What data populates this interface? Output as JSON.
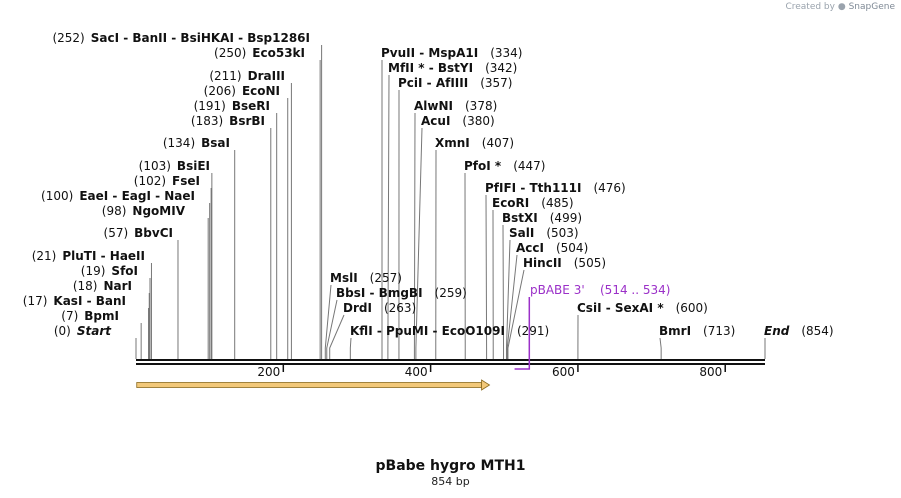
{
  "watermark": {
    "prefix": "Created by",
    "brand": "SnapGene"
  },
  "title": "pBabe hygro MTH1",
  "subtitle": "854 bp",
  "sequence_length": 854,
  "ticks": [
    {
      "pos": 200,
      "label": "200"
    },
    {
      "pos": 400,
      "label": "400"
    },
    {
      "pos": 600,
      "label": "600"
    },
    {
      "pos": 800,
      "label": "800"
    }
  ],
  "feature": {
    "name": "pBABE 3'",
    "range": "(514 .. 534)",
    "start": 514,
    "end": 534,
    "color": "#9b30c8"
  },
  "arrow": {
    "start": 1,
    "end": 480,
    "color": "#f2c879"
  },
  "enzymes": [
    {
      "names": "SacI - BanII - BsiHKAI - Bsp1286I",
      "pos": 252,
      "label": "(252)",
      "side": "left"
    },
    {
      "names": "Eco53kI",
      "pos": 250,
      "label": "(250)",
      "side": "left"
    },
    {
      "names": "DraIII",
      "pos": 211,
      "label": "(211)",
      "side": "left"
    },
    {
      "names": "EcoNI",
      "pos": 206,
      "label": "(206)",
      "side": "left"
    },
    {
      "names": "BseRI",
      "pos": 191,
      "label": "(191)",
      "side": "left"
    },
    {
      "names": "BsrBI",
      "pos": 183,
      "label": "(183)",
      "side": "left"
    },
    {
      "names": "BsaI",
      "pos": 134,
      "label": "(134)",
      "side": "left"
    },
    {
      "names": "BsiEI",
      "pos": 103,
      "label": "(103)",
      "side": "left"
    },
    {
      "names": "FseI",
      "pos": 102,
      "label": "(102)",
      "side": "left"
    },
    {
      "names": "EaeI - EagI - NaeI",
      "pos": 100,
      "label": "(100)",
      "side": "left"
    },
    {
      "names": "NgoMIV",
      "pos": 98,
      "label": "(98)",
      "side": "left"
    },
    {
      "names": "BbvCI",
      "pos": 57,
      "label": "(57)",
      "side": "left"
    },
    {
      "names": "PluTI - HaeII",
      "pos": 21,
      "label": "(21)",
      "side": "left"
    },
    {
      "names": "SfoI",
      "pos": 19,
      "label": "(19)",
      "side": "left"
    },
    {
      "names": "NarI",
      "pos": 18,
      "label": "(18)",
      "side": "left"
    },
    {
      "names": "KasI - BanI",
      "pos": 17,
      "label": "(17)",
      "side": "left"
    },
    {
      "names": "BpmI",
      "pos": 7,
      "label": "(7)",
      "side": "left"
    },
    {
      "names": "Start",
      "pos": 0,
      "label": "(0)",
      "side": "left",
      "italic": true
    },
    {
      "names": "MslI",
      "pos": 257,
      "label": "(257)",
      "side": "right"
    },
    {
      "names": "BbsI - BmgBI",
      "pos": 259,
      "label": "(259)",
      "side": "right"
    },
    {
      "names": "DrdI",
      "pos": 263,
      "label": "(263)",
      "side": "right"
    },
    {
      "names": "KflI - PpuMI - EcoO109I",
      "pos": 291,
      "label": "(291)",
      "side": "right"
    },
    {
      "names": "PvuII - MspA1I",
      "pos": 334,
      "label": "(334)",
      "side": "right"
    },
    {
      "names": "MfII * - BstYI",
      "pos": 342,
      "label": "(342)",
      "side": "right"
    },
    {
      "names": "PciI - AfIIII",
      "pos": 357,
      "label": "(357)",
      "side": "right"
    },
    {
      "names": "AlwNI",
      "pos": 378,
      "label": "(378)",
      "side": "right"
    },
    {
      "names": "AcuI",
      "pos": 380,
      "label": "(380)",
      "side": "right"
    },
    {
      "names": "XmnI",
      "pos": 407,
      "label": "(407)",
      "side": "right"
    },
    {
      "names": "PfoI *",
      "pos": 447,
      "label": "(447)",
      "side": "right"
    },
    {
      "names": "PfIFI - Tth111I",
      "pos": 476,
      "label": "(476)",
      "side": "right"
    },
    {
      "names": "EcoRI",
      "pos": 485,
      "label": "(485)",
      "side": "right"
    },
    {
      "names": "BstXI",
      "pos": 499,
      "label": "(499)",
      "side": "right"
    },
    {
      "names": "SalI",
      "pos": 503,
      "label": "(503)",
      "side": "right"
    },
    {
      "names": "AccI",
      "pos": 504,
      "label": "(504)",
      "side": "right"
    },
    {
      "names": "HincII",
      "pos": 505,
      "label": "(505)",
      "side": "right"
    },
    {
      "names": "CsiI - SexAI *",
      "pos": 600,
      "label": "(600)",
      "side": "right"
    },
    {
      "names": "BmrI",
      "pos": 713,
      "label": "(713)",
      "side": "right"
    },
    {
      "names": "End",
      "pos": 854,
      "label": "(854)",
      "side": "right",
      "italic": true
    }
  ]
}
